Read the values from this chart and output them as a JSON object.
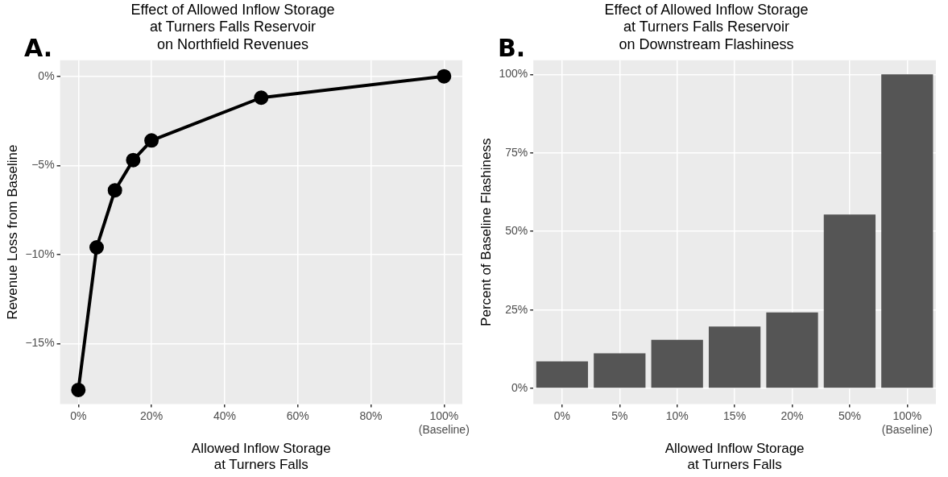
{
  "chart_data": [
    {
      "type": "line",
      "title": "Effect of Allowed Inflow Storage\nat Turners Falls Reservoir\non Northfield Revenues",
      "xlabel": "Allowed Inflow Storage\nat Turners Falls",
      "ylabel": "Revenue Loss from Baseline",
      "annotations": [
        "A."
      ],
      "x": [
        0,
        5,
        10,
        15,
        20,
        50,
        100
      ],
      "values": [
        -17.6,
        -9.6,
        -6.4,
        -4.7,
        -3.6,
        -1.2,
        0
      ],
      "color": "#000000",
      "marker": "circle",
      "line_style": "solid",
      "xlim": [
        -5,
        105
      ],
      "xticks": [
        {
          "value": 0,
          "label": "0%"
        },
        {
          "value": 20,
          "label": "20%"
        },
        {
          "value": 40,
          "label": "40%"
        },
        {
          "value": 60,
          "label": "60%"
        },
        {
          "value": 80,
          "label": "80%"
        },
        {
          "value": 100,
          "label": "100%\n(Baseline)"
        }
      ],
      "ylim": [
        -18.4,
        0.9
      ],
      "yticks": [
        {
          "value": -15,
          "label": "−15%"
        },
        {
          "value": -10,
          "label": "−10%"
        },
        {
          "value": -5,
          "label": "−5%"
        },
        {
          "value": 0,
          "label": "0%"
        }
      ],
      "grid": true,
      "legend": false
    },
    {
      "type": "bar",
      "title": "Effect of Allowed Inflow Storage\nat Turners Falls Reservoir\non Downstream Flashiness",
      "xlabel": "Allowed Inflow Storage\nat Turners Falls",
      "ylabel": "Percent of Baseline Flashiness",
      "annotations": [
        "B."
      ],
      "categories": [
        "0%",
        "5%",
        "10%",
        "15%",
        "20%",
        "50%",
        "100%\n(Baseline)"
      ],
      "values": [
        8.6,
        11.2,
        15.5,
        19.7,
        24.2,
        55.4,
        100
      ],
      "color": "#555555",
      "ylim": [
        -5,
        104.5
      ],
      "yticks": [
        {
          "value": 0,
          "label": "0%"
        },
        {
          "value": 25,
          "label": "25%"
        },
        {
          "value": 50,
          "label": "50%"
        },
        {
          "value": 75,
          "label": "75%"
        },
        {
          "value": 100,
          "label": "100%"
        }
      ],
      "grid": true,
      "legend": false
    }
  ]
}
